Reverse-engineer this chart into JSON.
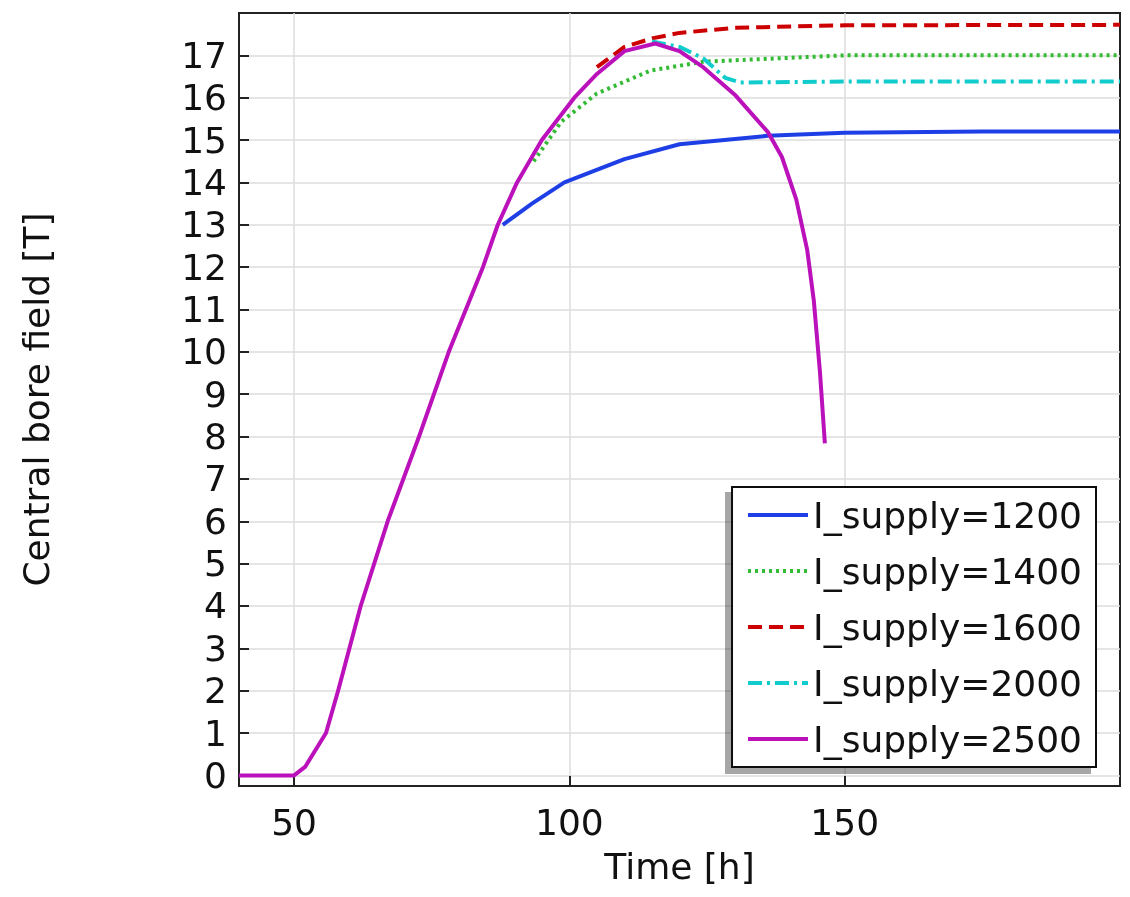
{
  "chart_data": {
    "type": "line",
    "xlabel": "Time [h]",
    "ylabel": "Central bore field [T]",
    "xlim": [
      40,
      200
    ],
    "xticks": [
      50,
      100,
      150
    ],
    "ylim": [
      -0.25,
      18
    ],
    "yticks": [
      0,
      1,
      2,
      3,
      4,
      5,
      6,
      7,
      8,
      9,
      10,
      11,
      12,
      13,
      14,
      15,
      16,
      17
    ],
    "grid": true,
    "legend": "bottom right",
    "marker": "none",
    "series": [
      {
        "name": "I_supply=1200",
        "color": "#1f3fe6",
        "line_style": "solid",
        "x": [
          87.9,
          93.2,
          99.1,
          110,
          120,
          136,
          150,
          175,
          200
        ],
        "values": [
          13,
          13.5,
          14,
          14.55,
          14.9,
          15.1,
          15.17,
          15.2,
          15.2
        ]
      },
      {
        "name": "I_supply=1400",
        "color": "#33bb33",
        "line_style": "dotted",
        "x": [
          93.5,
          98.5,
          105,
          114.7,
          124.3,
          150,
          200
        ],
        "values": [
          14.5,
          15.43,
          16.1,
          16.64,
          16.85,
          17,
          17
        ]
      },
      {
        "name": "I_supply=1600",
        "color": "#cc0000",
        "line_style": "dashed",
        "x": [
          105,
          110,
          115,
          120,
          130,
          150,
          200
        ],
        "values": [
          16.72,
          17.2,
          17.4,
          17.53,
          17.65,
          17.71,
          17.72
        ]
      },
      {
        "name": "I_supply=2000",
        "color": "#11cccc",
        "line_style": "dashdot",
        "x": [
          115,
          120,
          124.3,
          128.3,
          131,
          150,
          200
        ],
        "values": [
          17.33,
          17.2,
          16.93,
          16.47,
          16.36,
          16.38,
          16.38
        ]
      },
      {
        "name": "I_supply=2500",
        "color": "#bb11bb",
        "line_style": "solid",
        "x": [
          40,
          50,
          52,
          55.8,
          58,
          62.1,
          67,
          72.7,
          78.1,
          84.3,
          87,
          90.5,
          95,
          100.9,
          105,
          110,
          115.6,
          120,
          124.3,
          130.2,
          136.1,
          138.6,
          141.2,
          143.2,
          144.4,
          145.5,
          146.4
        ],
        "values": [
          0,
          0,
          0.2,
          1,
          2,
          4,
          6,
          8,
          10,
          12,
          13,
          14,
          15,
          16,
          16.56,
          17.1,
          17.28,
          17.1,
          16.72,
          16.05,
          15.18,
          14.6,
          13.6,
          12.4,
          11.2,
          9.54,
          7.84
        ]
      }
    ]
  }
}
